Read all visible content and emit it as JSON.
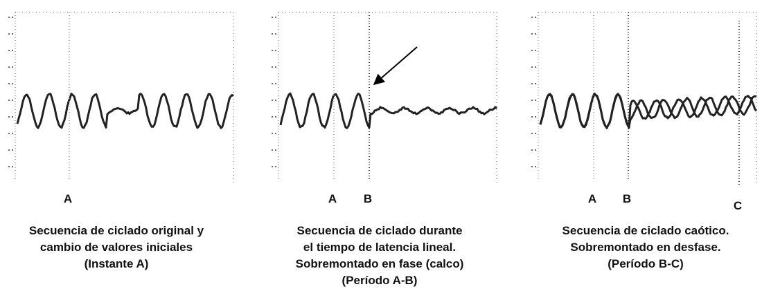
{
  "panels": [
    {
      "markers": [
        "A"
      ],
      "caption": [
        "Secuencia de ciclado original y",
        "cambio de valores iniciales",
        "(Instante A)"
      ]
    },
    {
      "markers": [
        "A",
        "B"
      ],
      "caption": [
        "Secuencia de ciclado durante",
        "el tiempo de latencia lineal.",
        "Sobremontado en fase (calco)",
        "(Período A-B)"
      ]
    },
    {
      "markers": [
        "A",
        "B",
        "C"
      ],
      "caption": [
        "Secuencia de ciclado caótico.",
        "Sobremontado en desfase.",
        "(Período B-C)"
      ]
    }
  ]
}
